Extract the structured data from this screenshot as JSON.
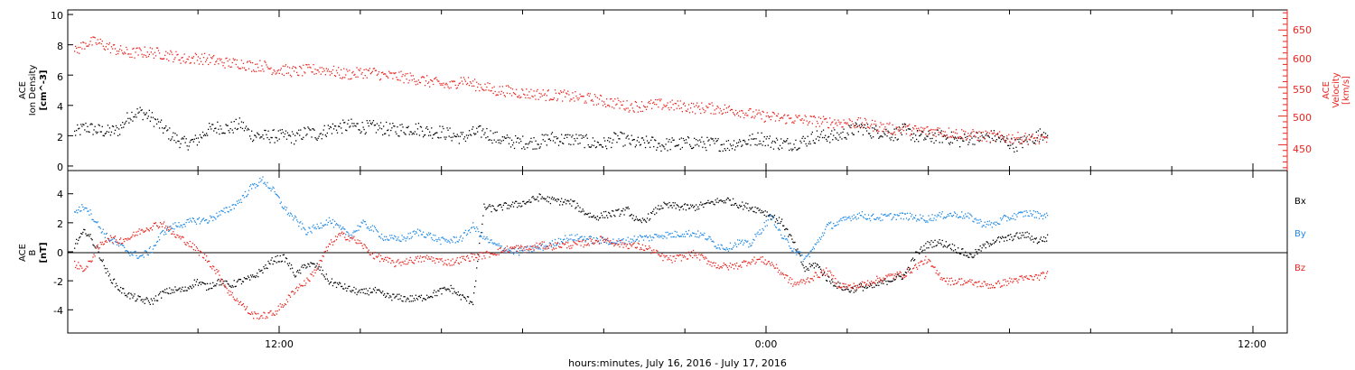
{
  "chart_data": [
    {
      "type": "scatter",
      "panel": "top",
      "left_axis": {
        "label_lines": [
          "ACE",
          "Ion Density",
          "[cm^-3]"
        ],
        "ticks": [
          0,
          2,
          4,
          6,
          8,
          10
        ],
        "ylim": [
          -0.3,
          10.3
        ]
      },
      "right_axis": {
        "label_lines": [
          "ACE",
          "Velocity",
          "[km/s]"
        ],
        "ticks": [
          450,
          500,
          550,
          600,
          650
        ],
        "ylim": [
          405,
          685
        ],
        "color": "#e8251f"
      },
      "series": [
        {
          "axis": "left",
          "color": "#000000",
          "x": [
            0,
            0.5,
            1,
            1.5,
            2,
            2.5,
            3,
            3.5,
            4,
            4.5,
            5,
            5.5,
            6,
            6.5,
            7,
            7.5,
            8,
            8.5,
            9,
            9.5,
            10,
            10.5,
            11,
            11.5,
            12,
            12.5,
            13,
            13.5,
            14,
            14.5,
            15,
            15.5,
            16,
            16.5,
            17,
            17.5,
            18,
            18.5,
            19,
            19.5,
            20,
            20.5,
            21,
            21.5,
            22,
            22.5,
            23,
            23.5,
            24,
            24.5,
            25,
            25.5,
            26,
            26.5,
            27,
            27.5,
            28,
            28.5,
            29,
            29.5,
            30,
            30.5,
            31,
            31.5,
            32,
            32.5,
            33,
            33.5,
            34,
            34.5,
            35,
            35.5,
            36,
            36.5,
            37,
            37.5,
            38,
            38.5,
            39,
            39.5,
            40,
            40.5,
            41,
            41.5,
            42,
            42.5,
            43,
            43.5,
            44
          ],
          "y": [
            2.2,
            2.6,
            2.4,
            2.3,
            2.4,
            3.4,
            3.6,
            3.2,
            2.5,
            1.9,
            1.5,
            1.7,
            2.4,
            2.6,
            2.5,
            2.8,
            2.1,
            2,
            2,
            2,
            1.9,
            2.3,
            2.1,
            2.5,
            2.6,
            2.7,
            2.6,
            2.6,
            2.5,
            2.4,
            2.5,
            2.5,
            2.3,
            2.3,
            2.1,
            1.9,
            2.2,
            2.3,
            1.9,
            1.7,
            1.6,
            1.6,
            1.6,
            1.9,
            1.8,
            1.8,
            1.7,
            1.5,
            1.5,
            1.9,
            1.7,
            1.5,
            1.6,
            1.4,
            1.5,
            1.5,
            1.6,
            1.5,
            1.5,
            1.4,
            1.6,
            1.7,
            1.9,
            1.6,
            1.5,
            1.5,
            1.7,
            2.0,
            2.0,
            2.0,
            2.3,
            2.6,
            2.3,
            2.3,
            2.1,
            2.4,
            2.0,
            1.9,
            2.0,
            1.9,
            1.7,
            1.9,
            1.9,
            2.0,
            1.7,
            1.4,
            1.7,
            2.0,
            2.4
          ]
        },
        {
          "axis": "right",
          "color": "#e8251f",
          "x": [
            0,
            0.5,
            1,
            1.5,
            2,
            2.5,
            3,
            3.5,
            4,
            4.5,
            5,
            5.5,
            6,
            6.5,
            7,
            7.5,
            8,
            8.5,
            9,
            9.5,
            10,
            10.5,
            11,
            11.5,
            12,
            12.5,
            13,
            13.5,
            14,
            14.5,
            15,
            15.5,
            16,
            16.5,
            17,
            17.5,
            18,
            18.5,
            19,
            19.5,
            20,
            20.5,
            21,
            21.5,
            22,
            22.5,
            23,
            23.5,
            24,
            24.5,
            25,
            25.5,
            26,
            26.5,
            27,
            27.5,
            28,
            28.5,
            29,
            29.5,
            30,
            30.5,
            31,
            31.5,
            32,
            32.5,
            33,
            33.5,
            34,
            34.5,
            35,
            35.5,
            36,
            36.5,
            37,
            37.5,
            38,
            38.5,
            39,
            39.5,
            40,
            40.5,
            41,
            41.5,
            42,
            42.5,
            43,
            43.5,
            44
          ],
          "y": [
            612,
            628,
            630,
            622,
            615,
            610,
            612,
            612,
            609,
            605,
            600,
            602,
            600,
            596,
            593,
            593,
            588,
            589,
            582,
            581,
            578,
            581,
            582,
            581,
            575,
            574,
            577,
            577,
            571,
            570,
            568,
            565,
            561,
            557,
            553,
            565,
            556,
            552,
            545,
            545,
            542,
            540,
            539,
            537,
            537,
            534,
            532,
            530,
            526,
            523,
            518,
            518,
            520,
            521,
            519,
            518,
            515,
            515,
            514,
            512,
            510,
            505,
            501,
            499,
            497,
            496,
            494,
            492,
            490,
            490,
            489,
            488,
            485,
            482,
            478,
            478,
            476,
            475,
            475,
            472,
            470,
            468,
            466,
            465,
            463,
            463,
            462,
            460,
            459
          ]
        }
      ]
    },
    {
      "type": "scatter",
      "panel": "bottom",
      "left_axis": {
        "label_lines": [
          "ACE",
          "B",
          "[nT]"
        ],
        "ticks": [
          -4,
          -2,
          0,
          2,
          4
        ],
        "ylim": [
          -5.6,
          5.6
        ]
      },
      "legend": [
        "Bx",
        "By",
        "Bz"
      ],
      "series": [
        {
          "name": "Bx",
          "color": "#000000",
          "x": [
            0,
            0.5,
            1,
            1.5,
            2,
            2.5,
            3,
            3.5,
            4,
            4.5,
            5,
            5.5,
            6,
            6.5,
            7,
            7.5,
            8,
            8.5,
            9,
            9.5,
            10,
            10.5,
            11,
            11.5,
            12,
            12.5,
            13,
            13.5,
            14,
            14.5,
            15,
            15.5,
            16,
            16.5,
            17,
            17.5,
            18,
            18.5,
            19,
            19.5,
            20,
            20.5,
            21,
            21.5,
            22,
            22.5,
            23,
            23.5,
            24,
            24.5,
            25,
            25.5,
            26,
            26.5,
            27,
            27.5,
            28,
            28.5,
            29,
            29.5,
            30,
            30.5,
            31,
            31.5,
            32,
            32.5,
            33,
            33.5,
            34,
            34.5,
            35,
            35.5,
            36,
            36.5,
            37,
            37.5,
            38,
            38.5,
            39,
            39.5,
            40,
            40.5,
            41,
            41.5,
            42,
            42.5,
            43,
            43.5,
            44
          ],
          "y": [
            0.5,
            1.5,
            0.3,
            -1.5,
            -2.5,
            -3.0,
            -3.3,
            -3.4,
            -2.8,
            -2.6,
            -2.6,
            -2.0,
            -2.4,
            -2.0,
            -2.3,
            -2.0,
            -1.8,
            -1.2,
            -0.5,
            -0.4,
            -1.6,
            -0.8,
            -1.0,
            -2.0,
            -2.3,
            -2.6,
            -2.8,
            -2.6,
            -3.0,
            -3.1,
            -3.2,
            -3.2,
            -3.0,
            -2.7,
            -2.5,
            -3.1,
            -3.4,
            3.1,
            3.0,
            3.2,
            3.3,
            3.5,
            3.8,
            3.6,
            3.5,
            3.4,
            2.8,
            2.4,
            2.6,
            2.7,
            2.9,
            2.0,
            2.5,
            3.2,
            3.2,
            3.1,
            3.1,
            3.3,
            3.5,
            3.6,
            3.3,
            3.1,
            2.9,
            2.5,
            2.0,
            0.6,
            -1.2,
            -0.8,
            -1.8,
            -2.3,
            -2.6,
            -2.4,
            -2.4,
            -2.1,
            -1.8,
            -1.6,
            -0.2,
            0.5,
            0.7,
            0.5,
            0.1,
            -0.3,
            0.3,
            0.8,
            0.9,
            1.1,
            1.2,
            0.8,
            1.0
          ]
        },
        {
          "name": "By",
          "color": "#1e88e5",
          "x": [
            0,
            0.5,
            1,
            1.5,
            2,
            2.5,
            3,
            3.5,
            4,
            4.5,
            5,
            5.5,
            6,
            6.5,
            7,
            7.5,
            8,
            8.5,
            9,
            9.5,
            10,
            10.5,
            11,
            11.5,
            12,
            12.5,
            13,
            13.5,
            14,
            14.5,
            15,
            15.5,
            16,
            16.5,
            17,
            17.5,
            18,
            18.5,
            19,
            19.5,
            20,
            20.5,
            21,
            21.5,
            22,
            22.5,
            23,
            23.5,
            24,
            24.5,
            25,
            25.5,
            26,
            26.5,
            27,
            27.5,
            28,
            28.5,
            29,
            29.5,
            30,
            30.5,
            31,
            31.5,
            32,
            32.5,
            33,
            33.5,
            34,
            34.5,
            35,
            35.5,
            36,
            36.5,
            37,
            37.5,
            38,
            38.5,
            39,
            39.5,
            40,
            40.5,
            41,
            41.5,
            42,
            42.5,
            43,
            43.5,
            44
          ],
          "y": [
            2.8,
            3.2,
            2.0,
            1.0,
            0.5,
            0.0,
            -0.3,
            0.2,
            1.4,
            1.8,
            2.0,
            2.2,
            2.2,
            2.6,
            3.0,
            3.6,
            4.5,
            5.0,
            4.2,
            3.0,
            2.2,
            1.4,
            1.8,
            2.2,
            1.6,
            1.2,
            2.0,
            1.6,
            1.0,
            0.9,
            1.0,
            1.4,
            1.2,
            0.8,
            0.8,
            1.0,
            1.8,
            1.0,
            0.5,
            0.2,
            0.0,
            0.2,
            0.3,
            0.5,
            0.9,
            1.0,
            1.0,
            0.8,
            0.8,
            0.7,
            0.8,
            1.0,
            1.0,
            1.2,
            1.2,
            1.3,
            1.3,
            1.1,
            0.5,
            0.3,
            0.7,
            0.5,
            1.5,
            2.5,
            1.0,
            0.2,
            -0.5,
            0.5,
            1.8,
            2.0,
            2.4,
            2.6,
            2.4,
            2.4,
            2.5,
            2.5,
            2.4,
            2.3,
            2.5,
            2.6,
            2.6,
            2.4,
            2.0,
            1.9,
            2.3,
            2.5,
            2.7,
            2.6,
            2.5
          ]
        },
        {
          "name": "Bz",
          "color": "#e8251f",
          "x": [
            0,
            0.5,
            1,
            1.5,
            2,
            2.5,
            3,
            3.5,
            4,
            4.5,
            5,
            5.5,
            6,
            6.5,
            7,
            7.5,
            8,
            8.5,
            9,
            9.5,
            10,
            10.5,
            11,
            11.5,
            12,
            12.5,
            13,
            13.5,
            14,
            14.5,
            15,
            15.5,
            16,
            16.5,
            17,
            17.5,
            18,
            18.5,
            19,
            19.5,
            20,
            20.5,
            21,
            21.5,
            22,
            22.5,
            23,
            23.5,
            24,
            24.5,
            25,
            25.5,
            26,
            26.5,
            27,
            27.5,
            28,
            28.5,
            29,
            29.5,
            30,
            30.5,
            31,
            31.5,
            32,
            32.5,
            33,
            33.5,
            34,
            34.5,
            35,
            35.5,
            36,
            36.5,
            37,
            37.5,
            38,
            38.5,
            39,
            39.5,
            40,
            40.5,
            41,
            41.5,
            42,
            42.5,
            43,
            43.5,
            44
          ],
          "y": [
            -0.8,
            -1.2,
            0.2,
            1.0,
            0.8,
            1.0,
            1.5,
            1.8,
            2.0,
            1.2,
            0.8,
            0.2,
            -0.5,
            -1.5,
            -2.8,
            -3.5,
            -4.3,
            -4.4,
            -4.2,
            -3.5,
            -2.5,
            -2.0,
            -1.0,
            0.5,
            1.2,
            1.0,
            0.5,
            -0.2,
            -0.5,
            -0.8,
            -0.6,
            -0.5,
            -0.4,
            -0.6,
            -0.7,
            -0.5,
            -0.3,
            -0.2,
            0.0,
            0.2,
            0.3,
            0.2,
            0.5,
            0.4,
            0.5,
            0.5,
            0.6,
            0.8,
            0.9,
            0.6,
            0.5,
            0.4,
            0.2,
            -0.3,
            -0.5,
            -0.3,
            -0.1,
            -0.5,
            -0.9,
            -1.0,
            -0.9,
            -0.6,
            -0.5,
            -0.8,
            -1.5,
            -2.2,
            -2.0,
            -1.6,
            -1.3,
            -2.2,
            -2.4,
            -2.3,
            -2.0,
            -1.8,
            -1.6,
            -1.5,
            -1.0,
            -0.5,
            -1.5,
            -2.0,
            -2.0,
            -2.1,
            -2.2,
            -2.3,
            -2.1,
            -1.9,
            -1.8,
            -1.7,
            -1.5
          ]
        }
      ]
    }
  ],
  "x_axis": {
    "title": "hours:minutes, July 16, 2016 - July 17, 2016",
    "tick_labels": [
      "12:00",
      "0:00",
      "12:00"
    ]
  },
  "legend_colors": {
    "Bx": "#000000",
    "By": "#1e88e5",
    "Bz": "#e8251f"
  }
}
